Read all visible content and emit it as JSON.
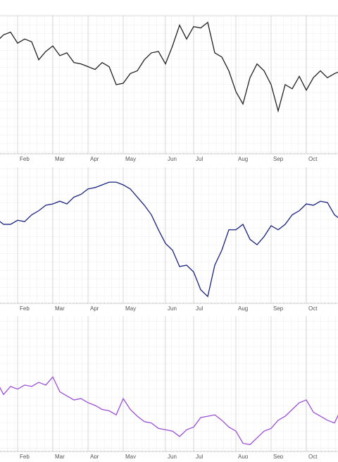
{
  "chart_data": [
    {
      "type": "line",
      "color": "#222222",
      "ylim": [
        0,
        100
      ],
      "grid": true,
      "categories": [
        null,
        null,
        null,
        "Feb",
        null,
        null,
        null,
        null,
        "Mar",
        null,
        null,
        null,
        null,
        "Apr",
        null,
        null,
        null,
        null,
        "May",
        null,
        null,
        null,
        null,
        null,
        "Jun",
        null,
        null,
        null,
        "Jul",
        null,
        null,
        null,
        null,
        null,
        "Aug",
        null,
        null,
        null,
        null,
        "Sep",
        null,
        null,
        null,
        null,
        "Oct",
        null,
        null,
        null,
        null,
        null
      ],
      "values": [
        81,
        86,
        88,
        80,
        83,
        81,
        68,
        74,
        78,
        71,
        73,
        66,
        65,
        63,
        61,
        66,
        63,
        50,
        51,
        58,
        60,
        68,
        73,
        74,
        65,
        78,
        93,
        83,
        92,
        91,
        95,
        73,
        70,
        60,
        45,
        36,
        55,
        65,
        60,
        50,
        31,
        50,
        47,
        56,
        46,
        55,
        60,
        55,
        58,
        60
      ]
    },
    {
      "type": "line",
      "color": "#1a237e",
      "ylim": [
        0,
        100
      ],
      "grid": true,
      "categories": [
        null,
        null,
        null,
        "Feb",
        null,
        null,
        null,
        null,
        "Mar",
        null,
        null,
        null,
        null,
        "Apr",
        null,
        null,
        null,
        null,
        "May",
        null,
        null,
        null,
        null,
        null,
        "Jun",
        null,
        null,
        null,
        "Jul",
        null,
        null,
        null,
        null,
        null,
        "Aug",
        null,
        null,
        null,
        null,
        "Sep",
        null,
        null,
        null,
        null,
        "Oct",
        null,
        null,
        null,
        null,
        null
      ],
      "values": [
        62,
        58,
        58,
        61,
        60,
        65,
        68,
        72,
        73,
        75,
        73,
        78,
        80,
        84,
        85,
        87,
        89,
        89,
        87,
        84,
        78,
        72,
        65,
        54,
        44,
        39,
        27,
        28,
        23,
        10,
        5,
        28,
        39,
        54,
        54,
        58,
        47,
        43,
        49,
        57,
        54,
        58,
        65,
        68,
        73,
        72,
        75,
        74,
        65,
        61
      ]
    },
    {
      "type": "line",
      "color": "#9b4fd8",
      "ylim": [
        0,
        100
      ],
      "grid": true,
      "categories": [
        null,
        null,
        null,
        "Feb",
        null,
        null,
        null,
        null,
        "Mar",
        null,
        null,
        null,
        null,
        "Apr",
        null,
        null,
        null,
        null,
        "May",
        null,
        null,
        null,
        null,
        null,
        "Jun",
        null,
        null,
        null,
        "Jul",
        null,
        null,
        null,
        null,
        null,
        "Aug",
        null,
        null,
        null,
        null,
        "Sep",
        null,
        null,
        null,
        null,
        "Oct",
        null,
        null,
        null,
        null,
        null
      ],
      "values": [
        52,
        42,
        48,
        46,
        49,
        48,
        51,
        49,
        55,
        44,
        41,
        38,
        39,
        36,
        34,
        31,
        30,
        27,
        39,
        31,
        26,
        22,
        21,
        17,
        16,
        15,
        11,
        16,
        18,
        25,
        26,
        27,
        23,
        18,
        15,
        6,
        5,
        10,
        15,
        17,
        23,
        26,
        31,
        36,
        38,
        29,
        26,
        23,
        21,
        32
      ]
    }
  ]
}
